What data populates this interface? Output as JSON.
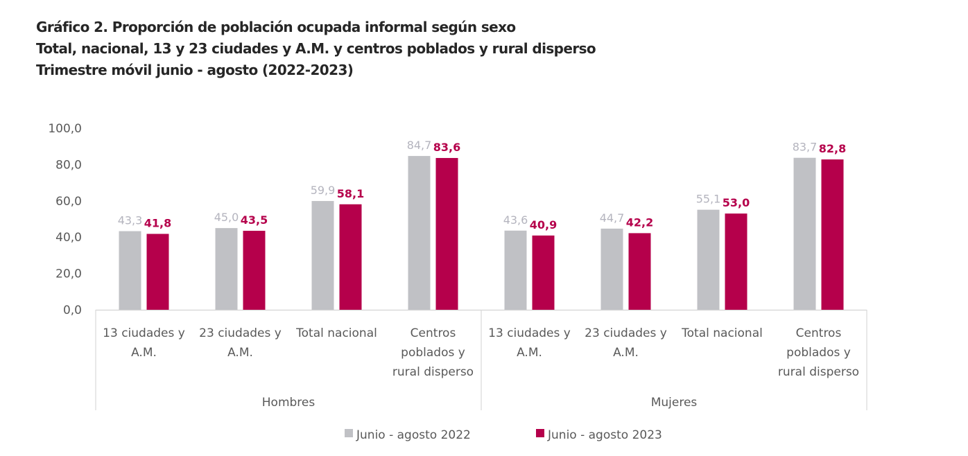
{
  "chart_data": {
    "type": "bar",
    "title": "Gráfico 2. Proporción de población ocupada informal según sexo",
    "subtitle_lines": [
      "Total, nacional, 13 y 23 ciudades y A.M. y centros poblados y rural disperso",
      "Trimestre móvil junio - agosto (2022-2023)"
    ],
    "xlabel": "",
    "ylabel": "",
    "ylim": [
      0,
      100
    ],
    "yticks": [
      "0,0",
      "20,0",
      "40,0",
      "60,0",
      "80,0",
      "100,0"
    ],
    "ytick_values": [
      0,
      20,
      40,
      60,
      80,
      100
    ],
    "grid": false,
    "legend_position": "bottom",
    "groups": [
      {
        "name": "Hombres",
        "categories": [
          [
            "13 ciudades y",
            "A.M."
          ],
          [
            "23 ciudades y",
            "A.M."
          ],
          [
            "Total nacional"
          ],
          [
            "Centros",
            "poblados y",
            "rural disperso"
          ]
        ]
      },
      {
        "name": "Mujeres",
        "categories": [
          [
            "13 ciudades y",
            "A.M."
          ],
          [
            "23 ciudades y",
            "A.M."
          ],
          [
            "Total nacional"
          ],
          [
            "Centros",
            "poblados y",
            "rural disperso"
          ]
        ]
      }
    ],
    "series": [
      {
        "name": "Junio - agosto 2022",
        "color": "#c0c1c5",
        "label_color": "#b4b4be",
        "values": [
          43.3,
          45.0,
          59.9,
          84.7,
          43.6,
          44.7,
          55.1,
          83.7
        ],
        "labels": [
          "43,3",
          "45,0",
          "59,9",
          "84,7",
          "43,6",
          "44,7",
          "55,1",
          "83,7"
        ]
      },
      {
        "name": "Junio - agosto 2023",
        "color": "#b5004b",
        "label_color": "#b5004b",
        "values": [
          41.8,
          43.5,
          58.1,
          83.6,
          40.9,
          42.2,
          53.0,
          82.8
        ],
        "labels": [
          "41,8",
          "43,5",
          "58,1",
          "83,6",
          "40,9",
          "42,2",
          "53,0",
          "82,8"
        ]
      }
    ]
  }
}
